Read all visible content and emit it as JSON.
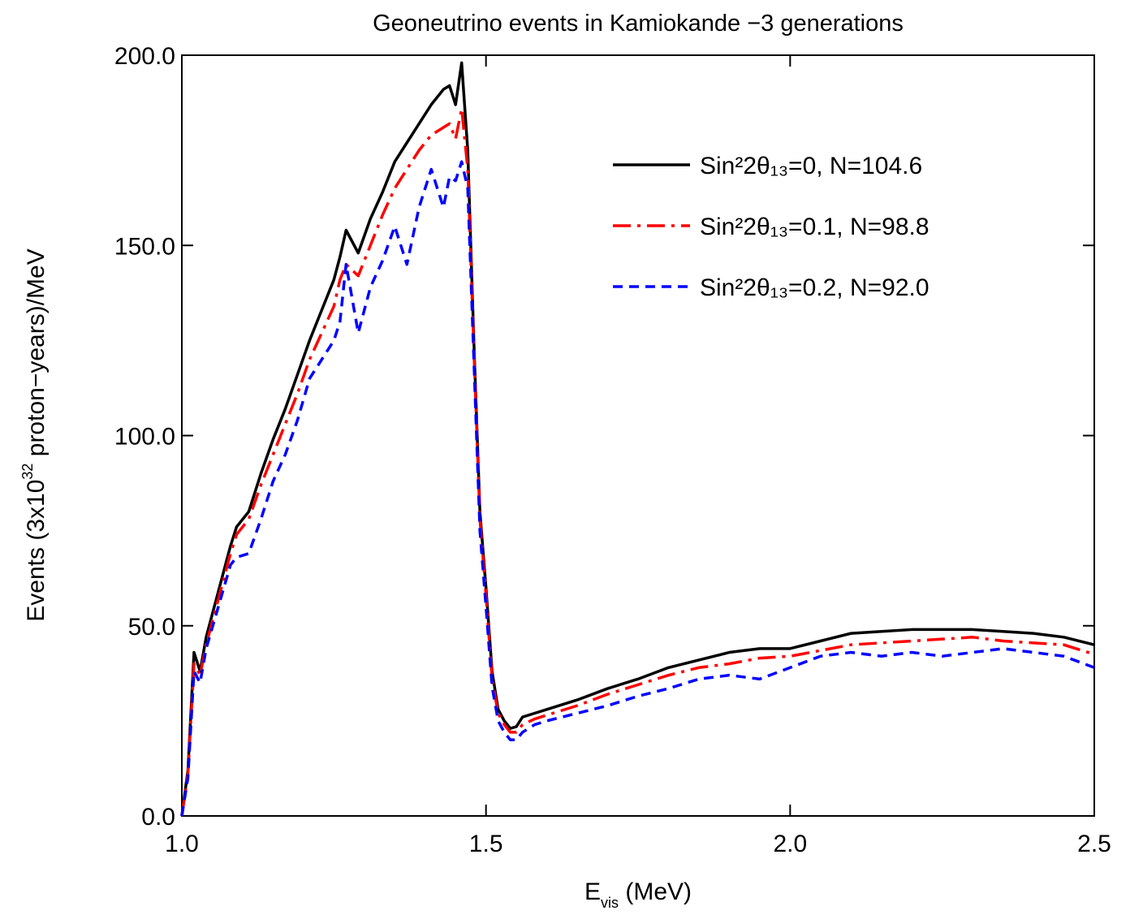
{
  "chart_data": {
    "type": "line",
    "title": "Geoneutrino events in Kamiokande −3 generations",
    "xlabel": [
      "E",
      "vis",
      " (MeV)"
    ],
    "ylabel": [
      "Events (3x10",
      "32",
      " proton−years)/MeV"
    ],
    "x": [
      1.0,
      1.01,
      1.02,
      1.03,
      1.04,
      1.06,
      1.08,
      1.09,
      1.11,
      1.13,
      1.15,
      1.17,
      1.19,
      1.21,
      1.23,
      1.25,
      1.26,
      1.27,
      1.29,
      1.31,
      1.33,
      1.35,
      1.37,
      1.39,
      1.41,
      1.43,
      1.44,
      1.45,
      1.46,
      1.47,
      1.48,
      1.49,
      1.5,
      1.51,
      1.52,
      1.53,
      1.54,
      1.55,
      1.56,
      1.58,
      1.6,
      1.65,
      1.7,
      1.75,
      1.8,
      1.85,
      1.9,
      1.95,
      2.0,
      2.05,
      2.1,
      2.15,
      2.2,
      2.25,
      2.3,
      2.35,
      2.4,
      2.45,
      2.5
    ],
    "series": [
      {
        "name": "Sin²2θ₁₃=0, N=104.6",
        "color": "#000000",
        "dash": "solid",
        "values": [
          0,
          12,
          43,
          38,
          47,
          59,
          71,
          76,
          80,
          90,
          99,
          107,
          116,
          125,
          133,
          141,
          147,
          154,
          148,
          157,
          164,
          172,
          177,
          182,
          187,
          191,
          192,
          187,
          198,
          175,
          125,
          80,
          60,
          38,
          28,
          25,
          23,
          23.5,
          26,
          27,
          28,
          30.5,
          33.5,
          36,
          39,
          41,
          43,
          44,
          44,
          46,
          48,
          48.5,
          49,
          49,
          49,
          48.5,
          48,
          47,
          45
        ]
      },
      {
        "name": "Sin²2θ₁₃=0.1, N=98.8",
        "color": "#ff0000",
        "dash": "dashdot",
        "values": [
          0,
          11,
          40,
          37,
          45,
          57,
          69,
          74,
          78,
          87,
          95,
          103,
          111,
          120,
          127,
          134,
          141,
          145,
          142,
          150,
          158,
          165,
          170,
          175,
          179,
          181,
          182,
          178,
          186,
          170,
          123,
          78,
          58,
          36,
          27,
          24,
          22,
          22,
          24,
          25.5,
          26.5,
          29,
          32,
          34.5,
          37,
          39,
          40,
          41.5,
          42,
          43.5,
          45,
          45.5,
          46,
          46.5,
          47,
          46,
          45.5,
          45,
          42.5
        ]
      },
      {
        "name": "Sin²2θ₁₃=0.2, N=92.0",
        "color": "#0000ff",
        "dash": "dashed",
        "values": [
          0,
          10,
          38,
          35,
          44,
          55,
          66,
          68,
          69,
          78,
          88,
          95,
          104,
          115,
          120,
          125,
          130,
          145,
          127,
          139,
          146,
          155,
          145,
          160,
          170,
          160,
          168,
          167,
          172,
          165,
          120,
          75,
          55,
          34,
          25,
          22,
          20,
          20,
          22,
          24,
          25,
          27,
          29,
          31.5,
          33.5,
          36,
          37,
          36,
          39,
          42,
          43,
          42,
          43,
          42,
          43,
          44,
          43,
          42,
          39
        ]
      }
    ],
    "xlim": [
      1.0,
      2.5
    ],
    "xticks": [
      {
        "value": 1.0,
        "label": "1.0"
      },
      {
        "value": 1.5,
        "label": "1.5"
      },
      {
        "value": 2.0,
        "label": "2.0"
      },
      {
        "value": 2.5,
        "label": "2.5"
      }
    ],
    "ylim": [
      0,
      200
    ],
    "yticks": [
      {
        "value": 0,
        "label": "0.0"
      },
      {
        "value": 50,
        "label": "50.0"
      },
      {
        "value": 100,
        "label": "100.0"
      },
      {
        "value": 150,
        "label": "150.0"
      },
      {
        "value": 200,
        "label": "200.0"
      }
    ],
    "grid": false,
    "legend": "upper right"
  }
}
